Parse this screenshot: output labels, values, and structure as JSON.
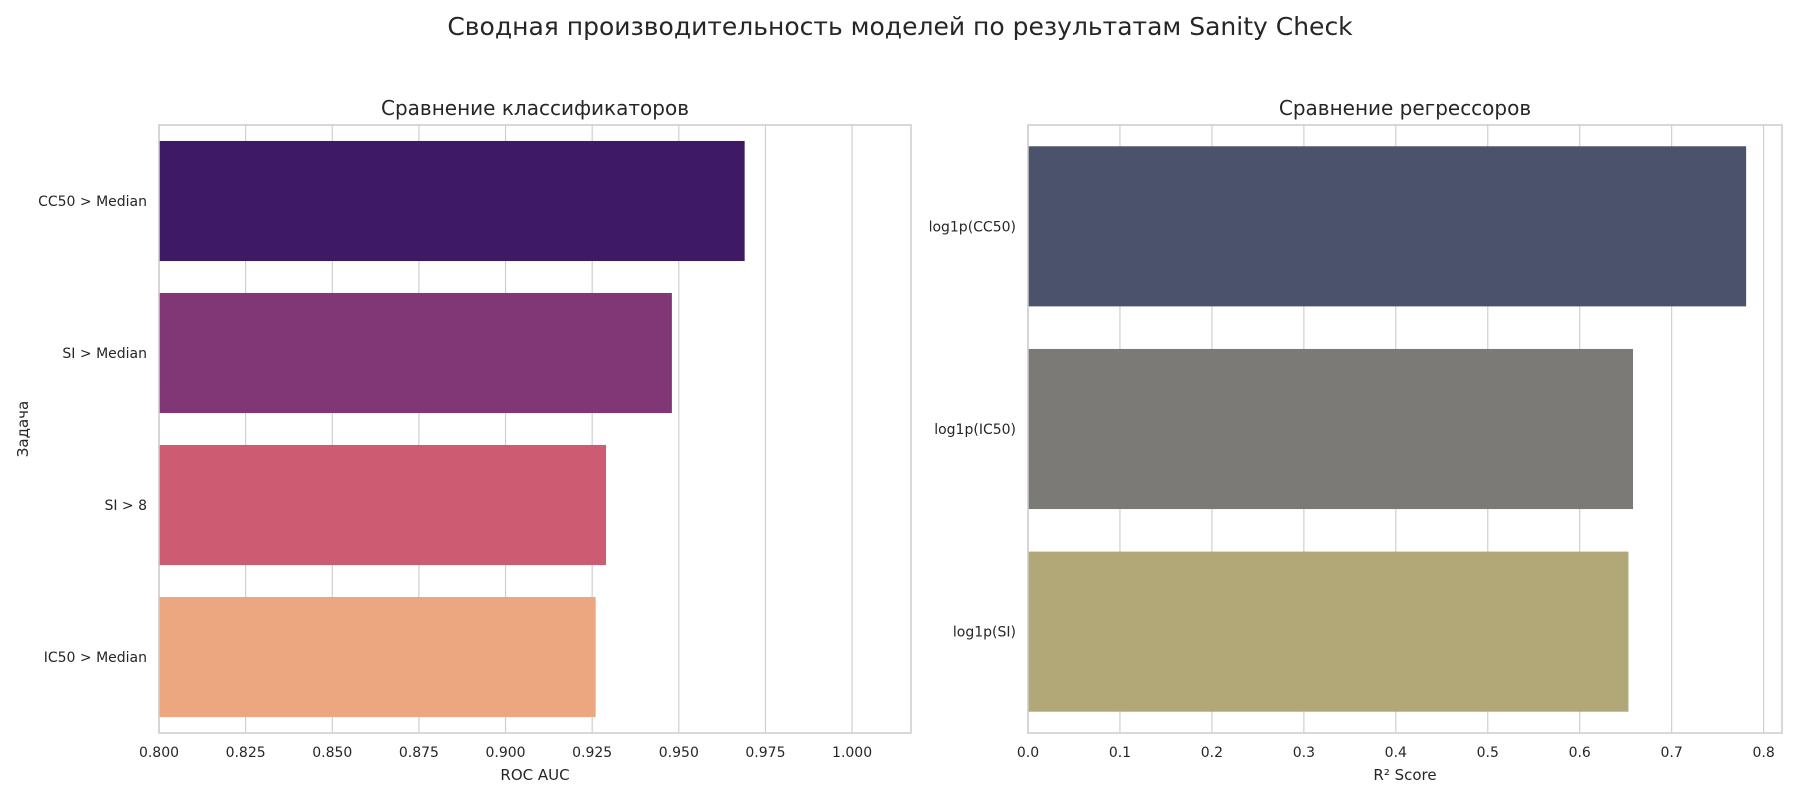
{
  "suptitle": "Сводная производительность моделей по результатам Sanity Check",
  "chart_data": [
    {
      "type": "bar",
      "orientation": "horizontal",
      "title": "Сравнение классификаторов",
      "xlabel": "ROC AUC",
      "ylabel": "Задача",
      "categories": [
        "CC50 > Median",
        "SI > Median",
        "SI > 8",
        "IC50 > Median"
      ],
      "values": [
        0.969,
        0.948,
        0.929,
        0.926
      ],
      "colors": [
        "#3e1a64",
        "#813676",
        "#cd5c73",
        "#eca680"
      ],
      "xlim": [
        0.8,
        1.017
      ],
      "xticks": [
        0.8,
        0.825,
        0.85,
        0.875,
        0.9,
        0.925,
        0.95,
        0.975,
        1.0
      ],
      "xtick_labels": [
        "0.800",
        "0.825",
        "0.850",
        "0.875",
        "0.900",
        "0.925",
        "0.950",
        "0.975",
        "1.000"
      ],
      "grid": true
    },
    {
      "type": "bar",
      "orientation": "horizontal",
      "title": "Сравнение регрессоров",
      "xlabel": "R² Score",
      "ylabel": "",
      "categories": [
        "log1p(CC50)",
        "log1p(IC50)",
        "log1p(SI)"
      ],
      "values": [
        0.781,
        0.658,
        0.653
      ],
      "colors": [
        "#4a536b",
        "#7b7a76",
        "#b1a777"
      ],
      "xlim": [
        0,
        0.82
      ],
      "xticks": [
        0,
        0.1,
        0.2,
        0.3,
        0.4,
        0.5,
        0.6,
        0.7,
        0.8
      ],
      "xtick_labels": [
        "0.0",
        "0.1",
        "0.2",
        "0.3",
        "0.4",
        "0.5",
        "0.6",
        "0.7",
        "0.8"
      ],
      "grid": true
    }
  ]
}
